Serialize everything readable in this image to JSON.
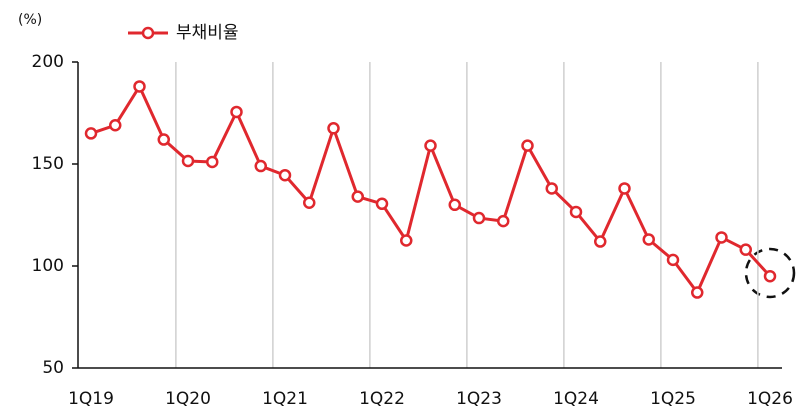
{
  "chart_data": {
    "type": "line",
    "y_label": "(%)",
    "categories": [
      "1Q19",
      null,
      null,
      null,
      "1Q20",
      null,
      null,
      null,
      "1Q21",
      null,
      null,
      null,
      "1Q22",
      null,
      null,
      null,
      "1Q23",
      null,
      null,
      null,
      "1Q24",
      null,
      null,
      null,
      "1Q25",
      null,
      null,
      null,
      "1Q26"
    ],
    "series": [
      {
        "name": "부채비율",
        "color": "#e0282e",
        "values": [
          165,
          169,
          188,
          162,
          151.5,
          151,
          175.5,
          149,
          144.5,
          131,
          167.5,
          134,
          130.5,
          112.5,
          159,
          130,
          123.5,
          122,
          159,
          138,
          126.5,
          112,
          138,
          113,
          103,
          87,
          114,
          108,
          95
        ]
      }
    ],
    "ylim": [
      50,
      200
    ],
    "yticks": [
      50,
      100,
      150,
      200
    ],
    "grid": true,
    "legend": "top-left"
  }
}
